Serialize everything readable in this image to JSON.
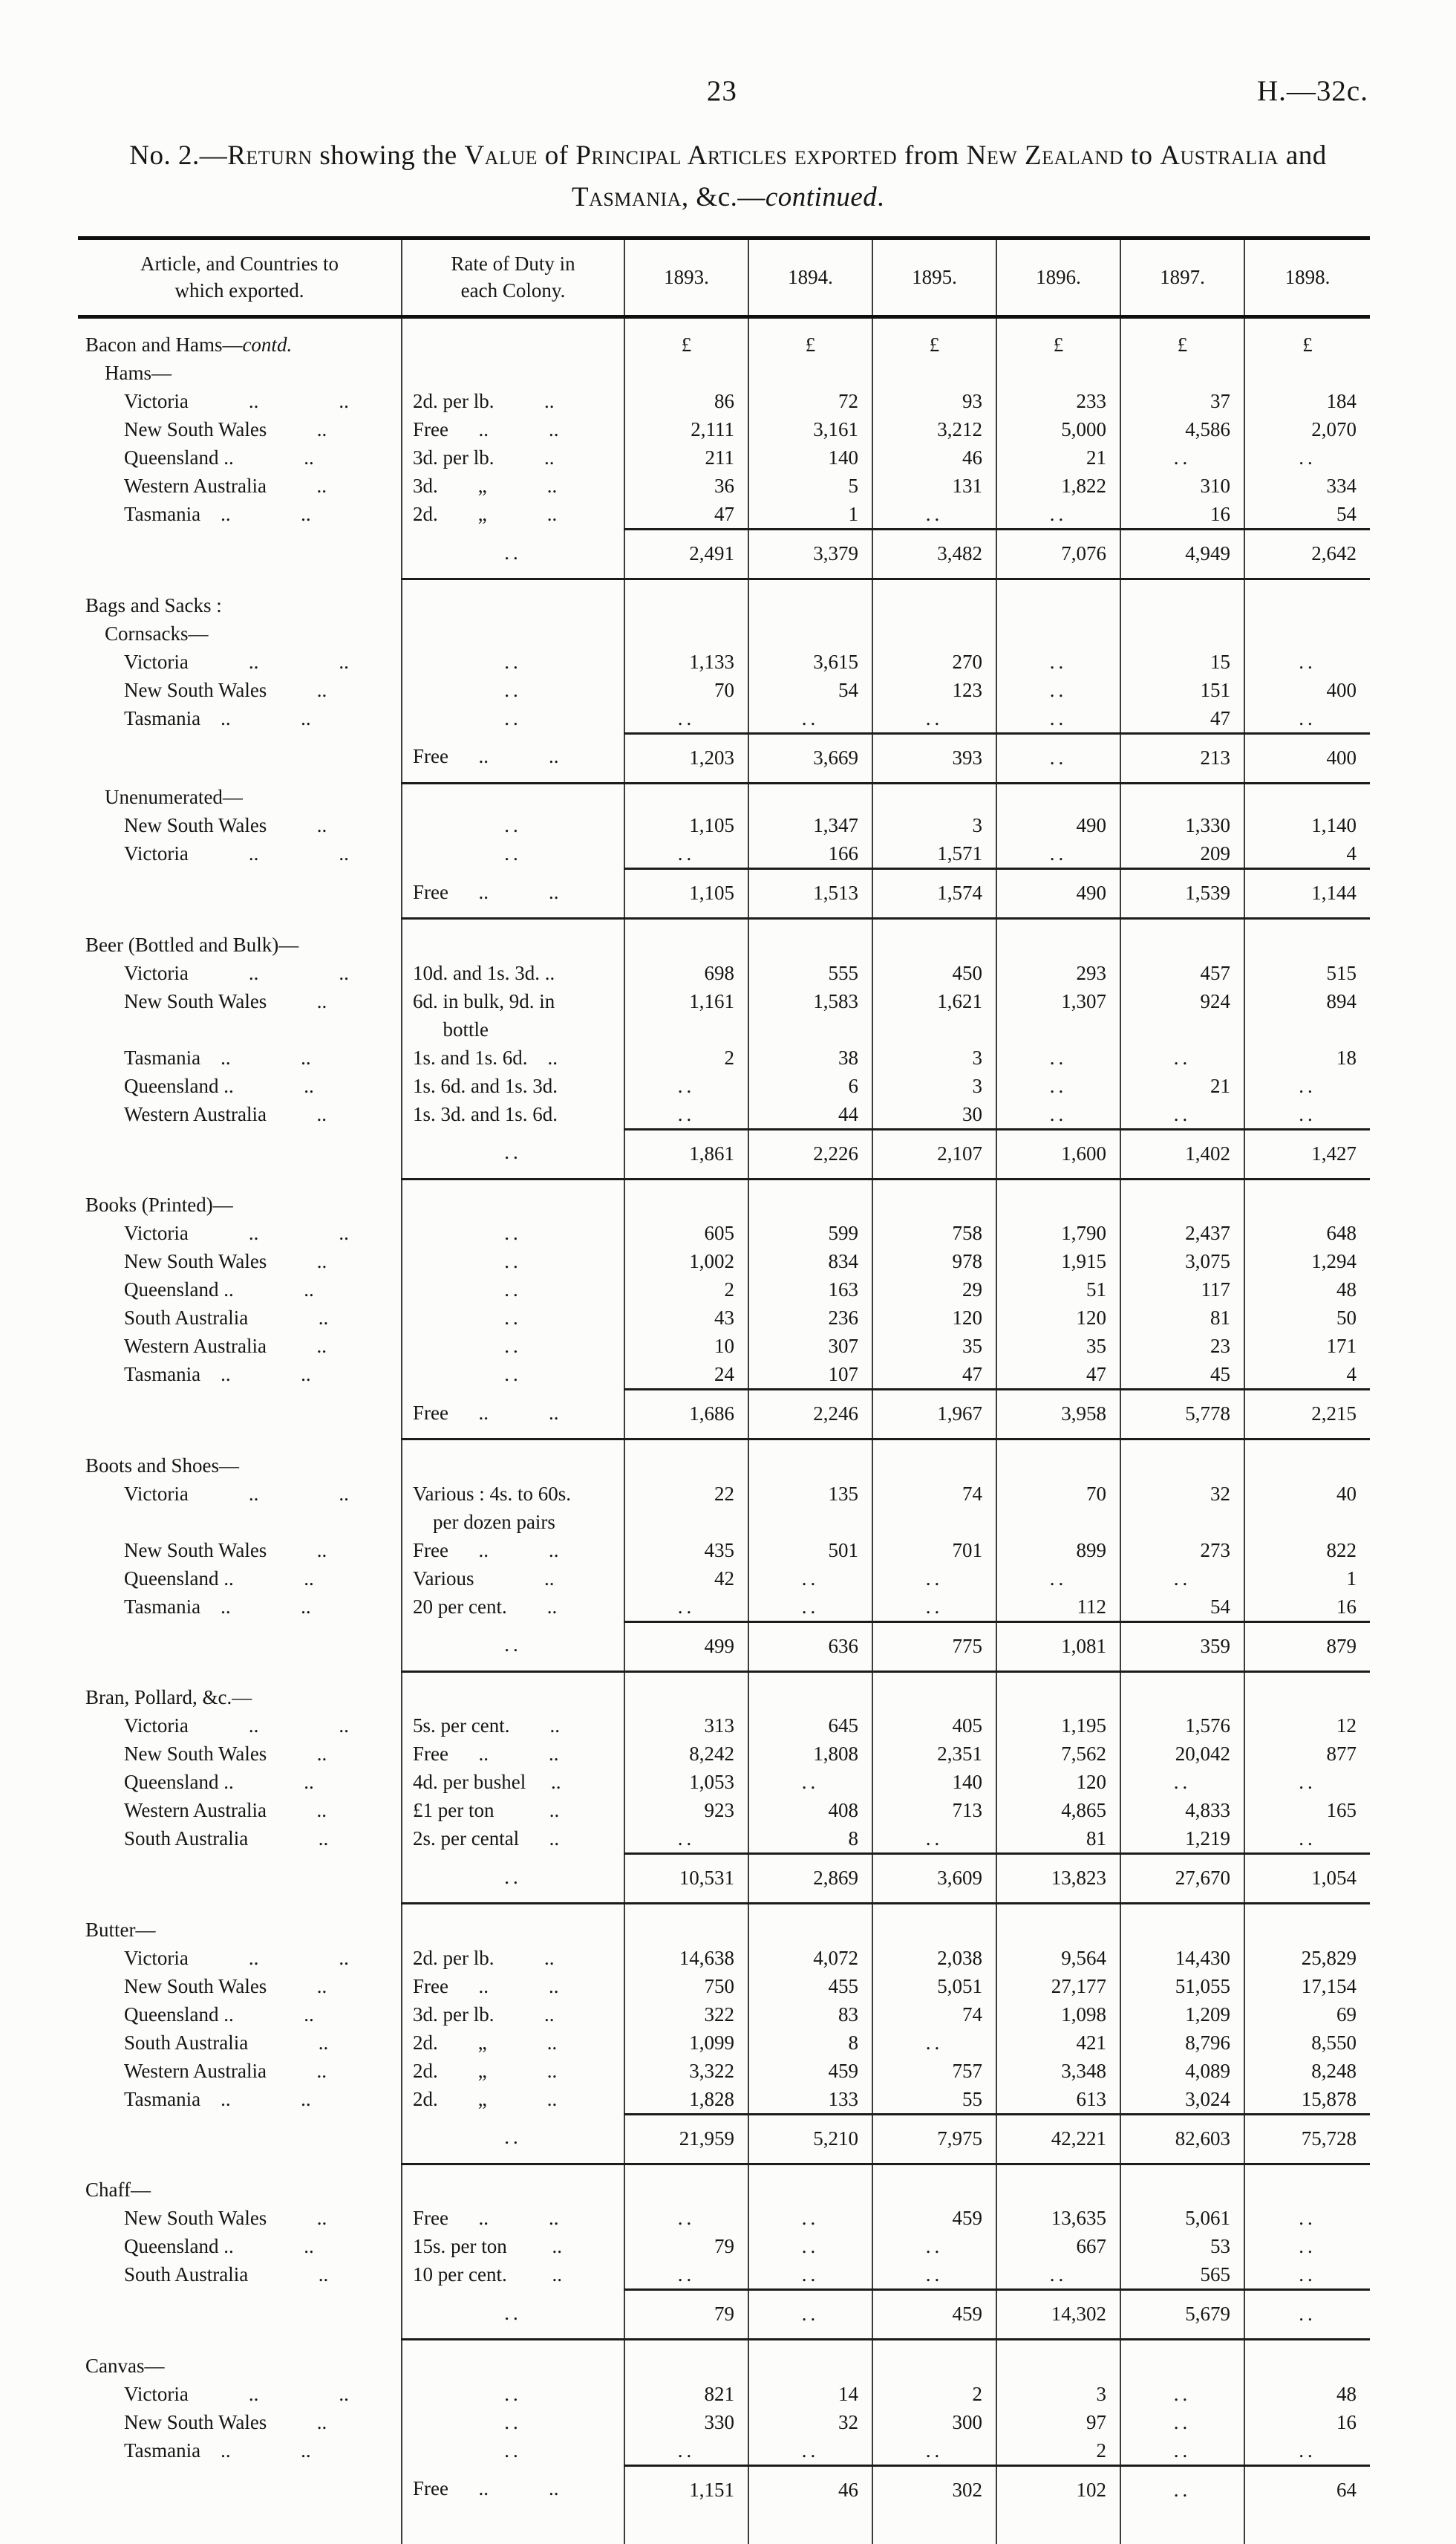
{
  "page_header": {
    "page_number": "23",
    "doc_ref": "H.—32c."
  },
  "title": {
    "segments": [
      {
        "t": "No. 2.—",
        "s": "p"
      },
      {
        "t": "Return",
        "s": "sc"
      },
      {
        "t": " showing the ",
        "s": "p"
      },
      {
        "t": "Value",
        "s": "sc"
      },
      {
        "t": " of ",
        "s": "p"
      },
      {
        "t": "Principal Articles exported",
        "s": "sc"
      },
      {
        "t": " from ",
        "s": "p"
      },
      {
        "t": "New Zealand",
        "s": "sc"
      },
      {
        "t": " to ",
        "s": "p"
      },
      {
        "t": "Australia",
        "s": "sc"
      },
      {
        "t": " and ",
        "s": "p"
      },
      {
        "t": "Tasmania",
        "s": "sc"
      },
      {
        "t": ", &c.—",
        "s": "p"
      },
      {
        "t": "continued",
        "s": "i"
      },
      {
        "t": ".",
        "s": "p"
      }
    ]
  },
  "table": {
    "headers": [
      "Article, and Countries to\nwhich exported.",
      "Rate of Duty in\neach Colony.",
      "1893.",
      "1894.",
      "1895.",
      "1896.",
      "1897.",
      "1898."
    ],
    "currency": "£",
    "sections": [
      {
        "heading": "Bacon and Hams—",
        "heading_italic": "contd.",
        "heading_currency": true,
        "subheading": "Hams—",
        "rows": [
          {
            "a": "Victoria            ..                ..",
            "r": "2d. per lb.          ..",
            "v": [
              "86",
              "72",
              "93",
              "233",
              "37",
              "184"
            ]
          },
          {
            "a": "New South Wales          ..",
            "r": "Free      ..            ..",
            "v": [
              "2,111",
              "3,161",
              "3,212",
              "5,000",
              "4,586",
              "2,070"
            ]
          },
          {
            "a": "Queensland ..              ..",
            "r": "3d. per lb.          ..",
            "v": [
              "211",
              "140",
              "46",
              "21",
              "..",
              ".."
            ]
          },
          {
            "a": "Western Australia          ..",
            "r": "3d.        „            ..",
            "v": [
              "36",
              "5",
              "131",
              "1,822",
              "310",
              "334"
            ]
          },
          {
            "a": "Tasmania    ..              ..",
            "r": "2d.        „            ..",
            "v": [
              "47",
              "1",
              "..",
              "..",
              "16",
              "54"
            ]
          }
        ],
        "total": {
          "r": "..",
          "v": [
            "2,491",
            "3,379",
            "3,482",
            "7,076",
            "4,949",
            "2,642"
          ]
        }
      },
      {
        "heading": "Bags and Sacks :",
        "subheading": "Cornsacks—",
        "rows": [
          {
            "a": "Victoria            ..                ..",
            "r": "..",
            "v": [
              "1,133",
              "3,615",
              "270",
              "..",
              "15",
              ".."
            ]
          },
          {
            "a": "New South Wales          ..",
            "r": "..",
            "v": [
              "70",
              "54",
              "123",
              "..",
              "151",
              "400"
            ]
          },
          {
            "a": "Tasmania    ..              ..",
            "r": "..",
            "v": [
              "..",
              "..",
              "..",
              "..",
              "47",
              ".."
            ]
          }
        ],
        "total": {
          "r": "Free      ..            ..",
          "v": [
            "1,203",
            "3,669",
            "393",
            "..",
            "213",
            "400"
          ]
        }
      },
      {
        "subheading": "Unenumerated—",
        "rows": [
          {
            "a": "New South Wales          ..",
            "r": "..",
            "v": [
              "1,105",
              "1,347",
              "3",
              "490",
              "1,330",
              "1,140"
            ]
          },
          {
            "a": "Victoria            ..                ..",
            "r": "..",
            "v": [
              "..",
              "166",
              "1,571",
              "..",
              "209",
              "4"
            ]
          }
        ],
        "total": {
          "r": "Free      ..            ..",
          "v": [
            "1,105",
            "1,513",
            "1,574",
            "490",
            "1,539",
            "1,144"
          ]
        }
      },
      {
        "heading": "Beer (Bottled and Bulk)—",
        "rows": [
          {
            "a": "Victoria            ..                ..",
            "r": "10d. and 1s. 3d. ..",
            "v": [
              "698",
              "555",
              "450",
              "293",
              "457",
              "515"
            ]
          },
          {
            "a": "New South Wales          ..",
            "r": "6d. in bulk, 9d. in\n      bottle",
            "v": [
              "1,161",
              "1,583",
              "1,621",
              "1,307",
              "924",
              "894"
            ]
          },
          {
            "a": "Tasmania    ..              ..",
            "r": "1s. and 1s. 6d.    ..",
            "v": [
              "2",
              "38",
              "3",
              "..",
              "..",
              "18"
            ]
          },
          {
            "a": "Queensland ..              ..",
            "r": "1s. 6d. and 1s. 3d.",
            "v": [
              "..",
              "6",
              "3",
              "..",
              "21",
              ".."
            ]
          },
          {
            "a": "Western Australia          ..",
            "r": "1s. 3d. and 1s. 6d.",
            "v": [
              "..",
              "44",
              "30",
              "..",
              "..",
              ".."
            ]
          }
        ],
        "total": {
          "r": "..",
          "v": [
            "1,861",
            "2,226",
            "2,107",
            "1,600",
            "1,402",
            "1,427"
          ]
        }
      },
      {
        "heading": "Books (Printed)—",
        "rows": [
          {
            "a": "Victoria            ..                ..",
            "r": "..",
            "v": [
              "605",
              "599",
              "758",
              "1,790",
              "2,437",
              "648"
            ]
          },
          {
            "a": "New South Wales          ..",
            "r": "..",
            "v": [
              "1,002",
              "834",
              "978",
              "1,915",
              "3,075",
              "1,294"
            ]
          },
          {
            "a": "Queensland ..              ..",
            "r": "..",
            "v": [
              "2",
              "163",
              "29",
              "51",
              "117",
              "48"
            ]
          },
          {
            "a": "South Australia              ..",
            "r": "..",
            "v": [
              "43",
              "236",
              "120",
              "120",
              "81",
              "50"
            ]
          },
          {
            "a": "Western Australia          ..",
            "r": "..",
            "v": [
              "10",
              "307",
              "35",
              "35",
              "23",
              "171"
            ]
          },
          {
            "a": "Tasmania    ..              ..",
            "r": "..",
            "v": [
              "24",
              "107",
              "47",
              "47",
              "45",
              "4"
            ]
          }
        ],
        "total": {
          "r": "Free      ..            ..",
          "v": [
            "1,686",
            "2,246",
            "1,967",
            "3,958",
            "5,778",
            "2,215"
          ]
        }
      },
      {
        "heading": "Boots and Shoes—",
        "rows": [
          {
            "a": "Victoria            ..                ..",
            "r": "Various : 4s. to 60s.\n    per dozen pairs",
            "v": [
              "22",
              "135",
              "74",
              "70",
              "32",
              "40"
            ]
          },
          {
            "a": "New South Wales          ..",
            "r": "Free      ..            ..",
            "v": [
              "435",
              "501",
              "701",
              "899",
              "273",
              "822"
            ]
          },
          {
            "a": "Queensland ..              ..",
            "r": "Various              ..",
            "v": [
              "42",
              "..",
              "..",
              "..",
              "..",
              "1"
            ]
          },
          {
            "a": "Tasmania    ..              ..",
            "r": "20 per cent.        ..",
            "v": [
              "..",
              "..",
              "..",
              "112",
              "54",
              "16"
            ]
          }
        ],
        "total": {
          "r": "..",
          "v": [
            "499",
            "636",
            "775",
            "1,081",
            "359",
            "879"
          ]
        }
      },
      {
        "heading": "Bran, Pollard, &c.—",
        "rows": [
          {
            "a": "Victoria            ..                ..",
            "r": "5s. per cent.        ..",
            "v": [
              "313",
              "645",
              "405",
              "1,195",
              "1,576",
              "12"
            ]
          },
          {
            "a": "New South Wales          ..",
            "r": "Free      ..            ..",
            "v": [
              "8,242",
              "1,808",
              "2,351",
              "7,562",
              "20,042",
              "877"
            ]
          },
          {
            "a": "Queensland ..              ..",
            "r": "4d. per bushel     ..",
            "v": [
              "1,053",
              "..",
              "140",
              "120",
              "..",
              ".."
            ]
          },
          {
            "a": "Western Australia          ..",
            "r": "£1 per ton           ..",
            "v": [
              "923",
              "408",
              "713",
              "4,865",
              "4,833",
              "165"
            ]
          },
          {
            "a": "South Australia              ..",
            "r": "2s. per cental      ..",
            "v": [
              "..",
              "8",
              "..",
              "81",
              "1,219",
              ".."
            ]
          }
        ],
        "total": {
          "r": "..",
          "v": [
            "10,531",
            "2,869",
            "3,609",
            "13,823",
            "27,670",
            "1,054"
          ]
        }
      },
      {
        "heading": "Butter—",
        "rows": [
          {
            "a": "Victoria            ..                ..",
            "r": "2d. per lb.          ..",
            "v": [
              "14,638",
              "4,072",
              "2,038",
              "9,564",
              "14,430",
              "25,829"
            ]
          },
          {
            "a": "New South Wales          ..",
            "r": "Free      ..            ..",
            "v": [
              "750",
              "455",
              "5,051",
              "27,177",
              "51,055",
              "17,154"
            ]
          },
          {
            "a": "Queensland ..              ..",
            "r": "3d. per lb.          ..",
            "v": [
              "322",
              "83",
              "74",
              "1,098",
              "1,209",
              "69"
            ]
          },
          {
            "a": "South Australia              ..",
            "r": "2d.        „            ..",
            "v": [
              "1,099",
              "8",
              "..",
              "421",
              "8,796",
              "8,550"
            ]
          },
          {
            "a": "Western Australia          ..",
            "r": "2d.        „            ..",
            "v": [
              "3,322",
              "459",
              "757",
              "3,348",
              "4,089",
              "8,248"
            ]
          },
          {
            "a": "Tasmania    ..              ..",
            "r": "2d.        „            ..",
            "v": [
              "1,828",
              "133",
              "55",
              "613",
              "3,024",
              "15,878"
            ]
          }
        ],
        "total": {
          "r": "..",
          "v": [
            "21,959",
            "5,210",
            "7,975",
            "42,221",
            "82,603",
            "75,728"
          ]
        }
      },
      {
        "heading": "Chaff—",
        "rows": [
          {
            "a": "New South Wales          ..",
            "r": "Free      ..            ..",
            "v": [
              "..",
              "..",
              "459",
              "13,635",
              "5,061",
              ".."
            ]
          },
          {
            "a": "Queensland ..              ..",
            "r": "15s. per ton         ..",
            "v": [
              "79",
              "..",
              "..",
              "667",
              "53",
              ".."
            ]
          },
          {
            "a": "South Australia              ..",
            "r": "10 per cent.         ..",
            "v": [
              "..",
              "..",
              "..",
              "..",
              "565",
              ".."
            ]
          }
        ],
        "total": {
          "r": "..",
          "v": [
            "79",
            "..",
            "459",
            "14,302",
            "5,679",
            ".."
          ]
        }
      },
      {
        "heading": "Canvas—",
        "rows": [
          {
            "a": "Victoria            ..                ..",
            "r": "..",
            "v": [
              "821",
              "14",
              "2",
              "3",
              "..",
              "48"
            ]
          },
          {
            "a": "New South Wales          ..",
            "r": "..",
            "v": [
              "330",
              "32",
              "300",
              "97",
              "..",
              "16"
            ]
          },
          {
            "a": "Tasmania    ..              ..",
            "r": "..",
            "v": [
              "..",
              "..",
              "..",
              "2",
              "..",
              ".."
            ]
          }
        ],
        "total": {
          "r": "Free      ..            ..",
          "v": [
            "1,151",
            "46",
            "302",
            "102",
            "..",
            "64"
          ]
        }
      }
    ]
  }
}
